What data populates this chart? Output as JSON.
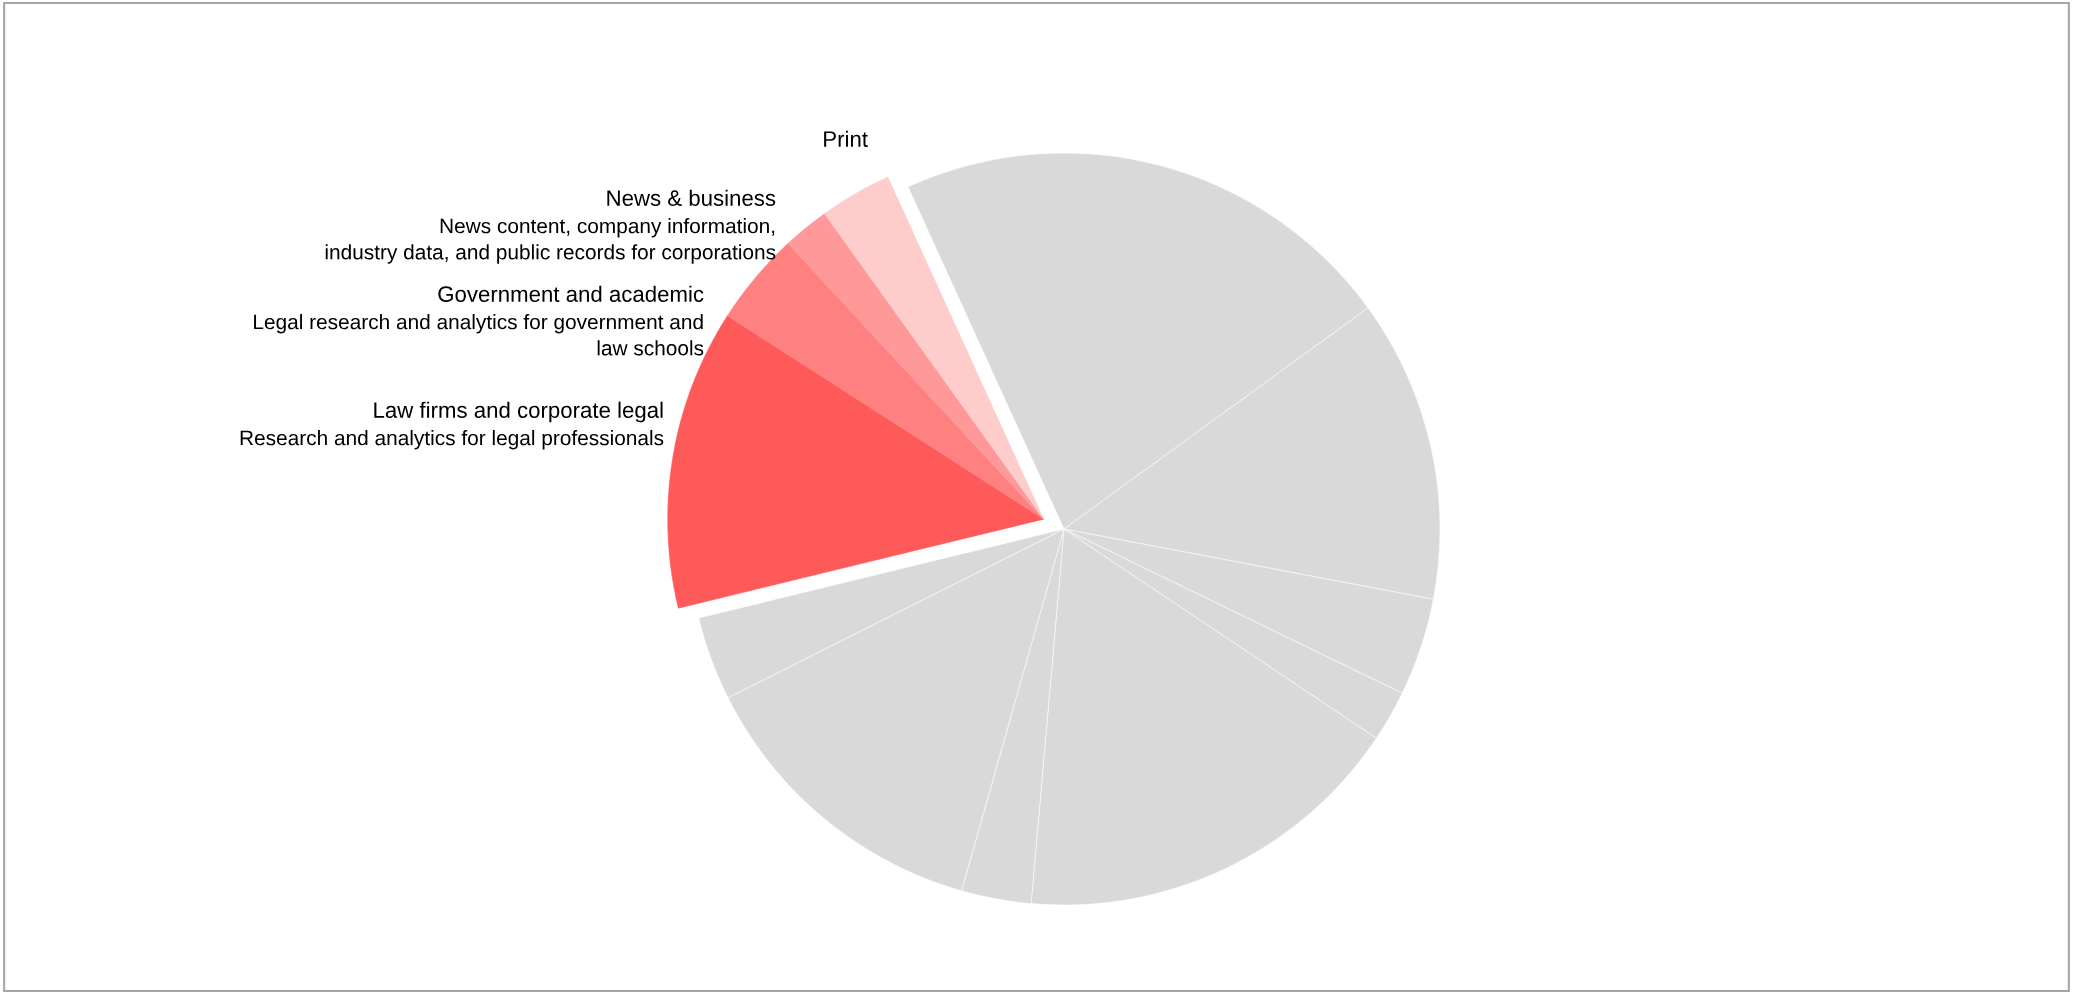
{
  "chart_data": {
    "type": "pie",
    "categories": [
      null,
      null,
      null,
      null,
      null,
      null,
      null,
      null,
      "Law firms and corporate legal",
      "Government and academic",
      "News & business",
      "Print"
    ],
    "values": [
      21.8,
      13.0,
      4.2,
      2.2,
      17.0,
      3.0,
      13.2,
      3.6,
      12.9,
      4.0,
      2.0,
      3.1
    ],
    "colors": [
      "#d9d9d9",
      "#d9d9d9",
      "#d9d9d9",
      "#d9d9d9",
      "#d9d9d9",
      "#d9d9d9",
      "#d9d9d9",
      "#d9d9d9",
      "#ff5a5a",
      "#ff8080",
      "#ff9999",
      "#ffcccc"
    ],
    "annotations": [
      "Research and analytics for legal professionals",
      "Legal research and analytics for government and\nlaw schools",
      "News content, company information,\nindustry data, and public records for corporations"
    ],
    "legend": false
  }
}
